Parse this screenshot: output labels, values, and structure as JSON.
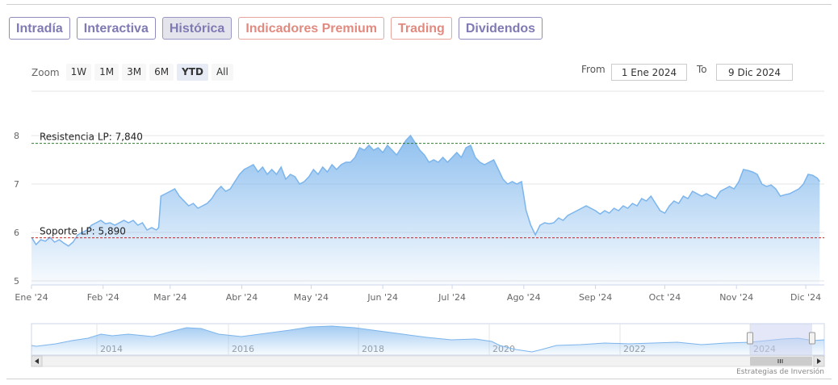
{
  "tabs": [
    {
      "label": "Intradía",
      "color": "purple",
      "active": false
    },
    {
      "label": "Interactiva",
      "color": "purple",
      "active": false
    },
    {
      "label": "Histórica",
      "color": "purple",
      "active": true
    },
    {
      "label": "Indicadores Premium",
      "color": "coral",
      "active": false
    },
    {
      "label": "Trading",
      "color": "coral",
      "active": false
    },
    {
      "label": "Dividendos",
      "color": "purple",
      "active": false
    }
  ],
  "zoom": {
    "label": "Zoom",
    "buttons": [
      "1W",
      "1M",
      "3M",
      "6M",
      "YTD",
      "All"
    ],
    "selected": "YTD"
  },
  "range": {
    "from_label": "From",
    "from_value": "1 Ene 2024",
    "to_label": "To",
    "to_value": "9 Dic 2024"
  },
  "credit": "Estrategias de Inversión",
  "colors": {
    "line": "#7cb5ec",
    "resistance": "#2e7d32",
    "support": "#c62828",
    "navigator_mask": "#c8d0ef"
  },
  "chart_data": {
    "type": "area",
    "x_tick_labels": [
      "Ene '24",
      "Feb '24",
      "Mar '24",
      "Abr '24",
      "May '24",
      "Jun '24",
      "Jul '24",
      "Ago '24",
      "Sep '24",
      "Oct '24",
      "Nov '24",
      "Dic '24"
    ],
    "x_tick_days": [
      0,
      31,
      60,
      91,
      121,
      152,
      182,
      213,
      244,
      274,
      305,
      335
    ],
    "x_end_day": 343,
    "ylim": [
      5,
      8
    ],
    "y_ticks": [
      "5",
      "6",
      "7",
      "8"
    ],
    "grid": true,
    "legend": "none",
    "plot_lines": [
      {
        "label": "Resistencia LP: 7,840",
        "value": 7.84,
        "style": "dashed",
        "color_key": "resistance"
      },
      {
        "label": "Soporte LP: 5,890",
        "value": 5.89,
        "style": "dashed",
        "color_key": "support"
      }
    ],
    "series": [
      {
        "points": [
          [
            0,
            5.9
          ],
          [
            2,
            5.75
          ],
          [
            4,
            5.85
          ],
          [
            6,
            5.82
          ],
          [
            8,
            5.9
          ],
          [
            10,
            5.8
          ],
          [
            12,
            5.85
          ],
          [
            14,
            5.78
          ],
          [
            16,
            5.72
          ],
          [
            18,
            5.8
          ],
          [
            20,
            5.95
          ],
          [
            22,
            6.0
          ],
          [
            24,
            6.05
          ],
          [
            26,
            6.15
          ],
          [
            28,
            6.2
          ],
          [
            30,
            6.25
          ],
          [
            32,
            6.18
          ],
          [
            34,
            6.2
          ],
          [
            36,
            6.15
          ],
          [
            38,
            6.2
          ],
          [
            40,
            6.25
          ],
          [
            42,
            6.2
          ],
          [
            44,
            6.25
          ],
          [
            46,
            6.15
          ],
          [
            48,
            6.2
          ],
          [
            50,
            6.05
          ],
          [
            52,
            6.1
          ],
          [
            54,
            6.05
          ],
          [
            55,
            6.1
          ],
          [
            56,
            6.75
          ],
          [
            58,
            6.8
          ],
          [
            60,
            6.85
          ],
          [
            62,
            6.9
          ],
          [
            64,
            6.75
          ],
          [
            66,
            6.65
          ],
          [
            68,
            6.55
          ],
          [
            70,
            6.6
          ],
          [
            72,
            6.5
          ],
          [
            74,
            6.55
          ],
          [
            76,
            6.6
          ],
          [
            78,
            6.7
          ],
          [
            80,
            6.85
          ],
          [
            82,
            6.95
          ],
          [
            84,
            6.85
          ],
          [
            86,
            6.9
          ],
          [
            88,
            7.05
          ],
          [
            90,
            7.2
          ],
          [
            92,
            7.3
          ],
          [
            94,
            7.35
          ],
          [
            96,
            7.4
          ],
          [
            98,
            7.25
          ],
          [
            100,
            7.35
          ],
          [
            102,
            7.2
          ],
          [
            104,
            7.3
          ],
          [
            106,
            7.2
          ],
          [
            108,
            7.35
          ],
          [
            110,
            7.1
          ],
          [
            112,
            7.2
          ],
          [
            114,
            7.15
          ],
          [
            116,
            7.0
          ],
          [
            118,
            7.05
          ],
          [
            120,
            7.15
          ],
          [
            122,
            7.3
          ],
          [
            124,
            7.2
          ],
          [
            126,
            7.35
          ],
          [
            128,
            7.25
          ],
          [
            130,
            7.4
          ],
          [
            132,
            7.3
          ],
          [
            134,
            7.4
          ],
          [
            136,
            7.45
          ],
          [
            138,
            7.45
          ],
          [
            140,
            7.55
          ],
          [
            142,
            7.75
          ],
          [
            144,
            7.7
          ],
          [
            146,
            7.8
          ],
          [
            148,
            7.7
          ],
          [
            150,
            7.75
          ],
          [
            152,
            7.65
          ],
          [
            154,
            7.8
          ],
          [
            156,
            7.7
          ],
          [
            158,
            7.6
          ],
          [
            160,
            7.75
          ],
          [
            162,
            7.9
          ],
          [
            164,
            8.0
          ],
          [
            166,
            7.85
          ],
          [
            168,
            7.7
          ],
          [
            170,
            7.6
          ],
          [
            172,
            7.45
          ],
          [
            174,
            7.5
          ],
          [
            176,
            7.45
          ],
          [
            178,
            7.55
          ],
          [
            180,
            7.45
          ],
          [
            182,
            7.55
          ],
          [
            184,
            7.65
          ],
          [
            186,
            7.55
          ],
          [
            188,
            7.75
          ],
          [
            190,
            7.8
          ],
          [
            192,
            7.55
          ],
          [
            194,
            7.45
          ],
          [
            196,
            7.4
          ],
          [
            198,
            7.45
          ],
          [
            200,
            7.5
          ],
          [
            202,
            7.3
          ],
          [
            204,
            7.1
          ],
          [
            206,
            7.0
          ],
          [
            208,
            7.05
          ],
          [
            210,
            7.0
          ],
          [
            212,
            7.05
          ],
          [
            214,
            6.45
          ],
          [
            216,
            6.15
          ],
          [
            218,
            5.95
          ],
          [
            220,
            6.15
          ],
          [
            222,
            6.2
          ],
          [
            224,
            6.18
          ],
          [
            226,
            6.2
          ],
          [
            228,
            6.3
          ],
          [
            230,
            6.25
          ],
          [
            232,
            6.35
          ],
          [
            234,
            6.4
          ],
          [
            236,
            6.45
          ],
          [
            238,
            6.5
          ],
          [
            240,
            6.55
          ],
          [
            242,
            6.5
          ],
          [
            244,
            6.45
          ],
          [
            246,
            6.38
          ],
          [
            248,
            6.45
          ],
          [
            250,
            6.4
          ],
          [
            252,
            6.5
          ],
          [
            254,
            6.45
          ],
          [
            256,
            6.55
          ],
          [
            258,
            6.5
          ],
          [
            260,
            6.6
          ],
          [
            262,
            6.55
          ],
          [
            264,
            6.7
          ],
          [
            266,
            6.65
          ],
          [
            268,
            6.75
          ],
          [
            270,
            6.6
          ],
          [
            272,
            6.45
          ],
          [
            274,
            6.4
          ],
          [
            276,
            6.55
          ],
          [
            278,
            6.65
          ],
          [
            280,
            6.6
          ],
          [
            282,
            6.75
          ],
          [
            284,
            6.7
          ],
          [
            286,
            6.85
          ],
          [
            288,
            6.8
          ],
          [
            290,
            6.75
          ],
          [
            292,
            6.8
          ],
          [
            294,
            6.75
          ],
          [
            296,
            6.7
          ],
          [
            298,
            6.85
          ],
          [
            300,
            6.9
          ],
          [
            302,
            6.95
          ],
          [
            304,
            6.9
          ],
          [
            306,
            7.05
          ],
          [
            308,
            7.3
          ],
          [
            310,
            7.28
          ],
          [
            312,
            7.25
          ],
          [
            314,
            7.2
          ],
          [
            316,
            7.0
          ],
          [
            318,
            6.95
          ],
          [
            320,
            6.98
          ],
          [
            322,
            6.9
          ],
          [
            324,
            6.75
          ],
          [
            326,
            6.78
          ],
          [
            328,
            6.8
          ],
          [
            330,
            6.85
          ],
          [
            332,
            6.9
          ],
          [
            334,
            7.0
          ],
          [
            336,
            7.2
          ],
          [
            338,
            7.18
          ],
          [
            340,
            7.12
          ],
          [
            341,
            7.05
          ]
        ]
      }
    ]
  },
  "navigator": {
    "year_labels": [
      "2014",
      "2016",
      "2018",
      "2020",
      "2022",
      "2024"
    ]
  }
}
